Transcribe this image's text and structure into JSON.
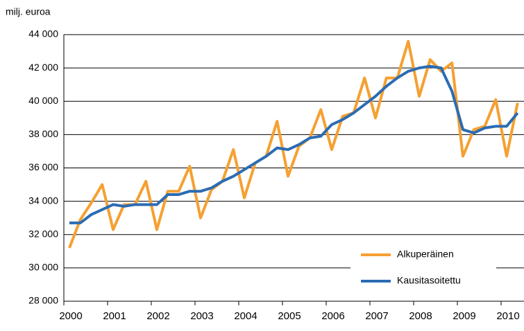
{
  "chart_data": {
    "type": "line",
    "y_label": "milj. euroa",
    "categories": [
      "2000",
      null,
      null,
      null,
      "2001",
      null,
      null,
      null,
      "2002",
      null,
      null,
      null,
      "2003",
      null,
      null,
      null,
      "2004",
      null,
      null,
      null,
      "2005",
      null,
      null,
      null,
      "2006",
      null,
      null,
      null,
      "2007",
      null,
      null,
      null,
      "2008",
      null,
      null,
      null,
      "2009",
      null,
      null,
      null,
      "2010",
      null
    ],
    "series": [
      {
        "name": "Alkuperäinen",
        "color": "#f5a031",
        "values": [
          31200,
          32900,
          33900,
          35000,
          32300,
          33800,
          33800,
          35200,
          32300,
          34600,
          34600,
          36100,
          33000,
          34700,
          35200,
          37100,
          34200,
          36300,
          36700,
          38800,
          35500,
          37300,
          37800,
          39500,
          37100,
          39100,
          39300,
          41400,
          39000,
          41400,
          41400,
          43600,
          40300,
          42500,
          41800,
          42300,
          36700,
          38300,
          38500,
          40100,
          36700,
          39900
        ]
      },
      {
        "name": "Kausitasoitettu",
        "color": "#2b6cb3",
        "values": [
          32700,
          32700,
          33200,
          33500,
          33800,
          33700,
          33800,
          33800,
          33800,
          34400,
          34400,
          34600,
          34600,
          34800,
          35200,
          35500,
          35900,
          36300,
          36700,
          37200,
          37100,
          37400,
          37800,
          37900,
          38600,
          38900,
          39300,
          39800,
          40300,
          40900,
          41400,
          41800,
          42000,
          42100,
          42000,
          40600,
          38300,
          38100,
          38400,
          38500,
          38500,
          39300
        ]
      }
    ],
    "ylim": [
      28000,
      44000
    ],
    "yticks": [
      {
        "value": 28000,
        "label": "28 000"
      },
      {
        "value": 30000,
        "label": "30 000"
      },
      {
        "value": 32000,
        "label": "32 000"
      },
      {
        "value": 34000,
        "label": "34 000"
      },
      {
        "value": 36000,
        "label": "36 000"
      },
      {
        "value": 38000,
        "label": "38 000"
      },
      {
        "value": 40000,
        "label": "40 000"
      },
      {
        "value": 42000,
        "label": "42 000"
      },
      {
        "value": 44000,
        "label": "44 000"
      }
    ],
    "grid": true,
    "legend": "lower right"
  }
}
